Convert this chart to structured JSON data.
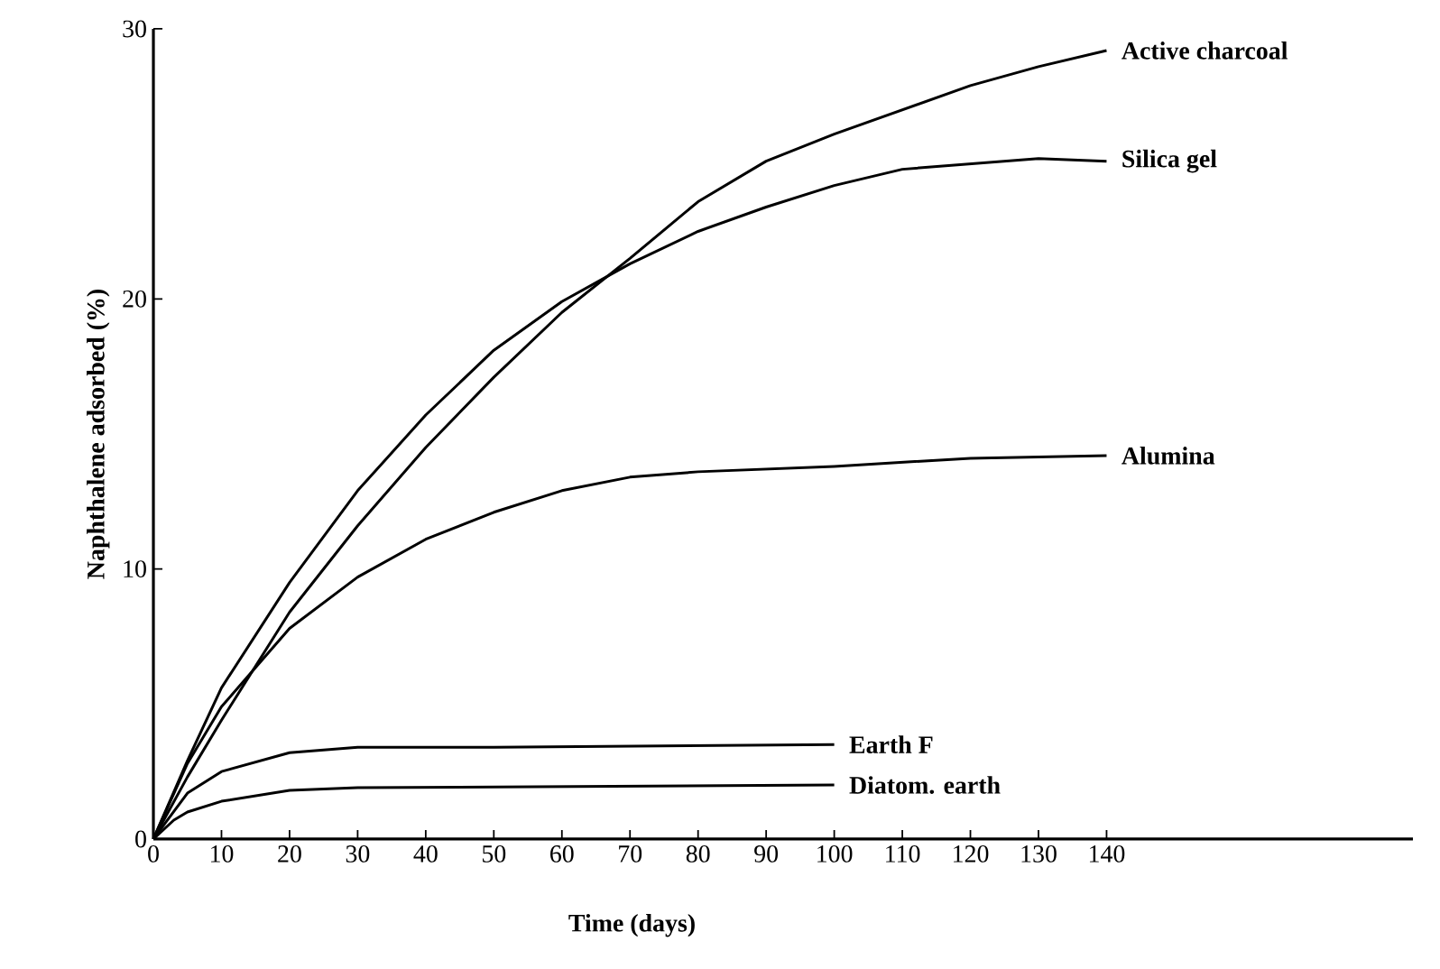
{
  "chart_data": {
    "type": "line",
    "xlabel": "Time (days)",
    "ylabel": "Naphthalene adsorbed (%)",
    "xlim": [
      0,
      185
    ],
    "ylim": [
      0,
      30
    ],
    "xticks": [
      0,
      10,
      20,
      30,
      40,
      50,
      60,
      70,
      80,
      90,
      100,
      110,
      120,
      130,
      140
    ],
    "yticks": [
      0,
      10,
      20,
      30
    ],
    "grid": false,
    "legend": false,
    "marker": "none",
    "line_style": "solid",
    "series": [
      {
        "name": "Active charcoal",
        "color": "#000000",
        "x": [
          0,
          5,
          10,
          20,
          30,
          40,
          50,
          60,
          70,
          80,
          90,
          100,
          110,
          120,
          130,
          140
        ],
        "values": [
          0,
          2.3,
          4.4,
          8.4,
          11.6,
          14.5,
          17.1,
          19.5,
          21.5,
          23.6,
          25.1,
          26.1,
          27.0,
          27.9,
          28.6,
          29.2
        ]
      },
      {
        "name": "Silica gel",
        "color": "#000000",
        "x": [
          0,
          5,
          10,
          20,
          30,
          40,
          50,
          60,
          70,
          80,
          90,
          100,
          110,
          120,
          130,
          140
        ],
        "values": [
          0,
          2.9,
          5.6,
          9.5,
          12.9,
          15.7,
          18.1,
          19.9,
          21.3,
          22.5,
          23.4,
          24.2,
          24.8,
          25.0,
          25.2,
          25.1
        ]
      },
      {
        "name": "Alumina",
        "color": "#000000",
        "x": [
          0,
          5,
          10,
          20,
          30,
          40,
          50,
          60,
          70,
          80,
          100,
          120,
          140
        ],
        "values": [
          0,
          2.8,
          4.9,
          7.8,
          9.7,
          11.1,
          12.1,
          12.9,
          13.4,
          13.6,
          13.8,
          14.1,
          14.2
        ]
      },
      {
        "name": "Earth F",
        "color": "#000000",
        "x": [
          0,
          5,
          10,
          20,
          30,
          50,
          100
        ],
        "values": [
          0,
          1.7,
          2.5,
          3.2,
          3.4,
          3.4,
          3.5
        ]
      },
      {
        "name": "Diatom. earth",
        "color": "#000000",
        "x": [
          0,
          3,
          5,
          10,
          20,
          30,
          100
        ],
        "values": [
          0,
          0.7,
          1.0,
          1.4,
          1.8,
          1.9,
          2.0
        ]
      }
    ]
  }
}
